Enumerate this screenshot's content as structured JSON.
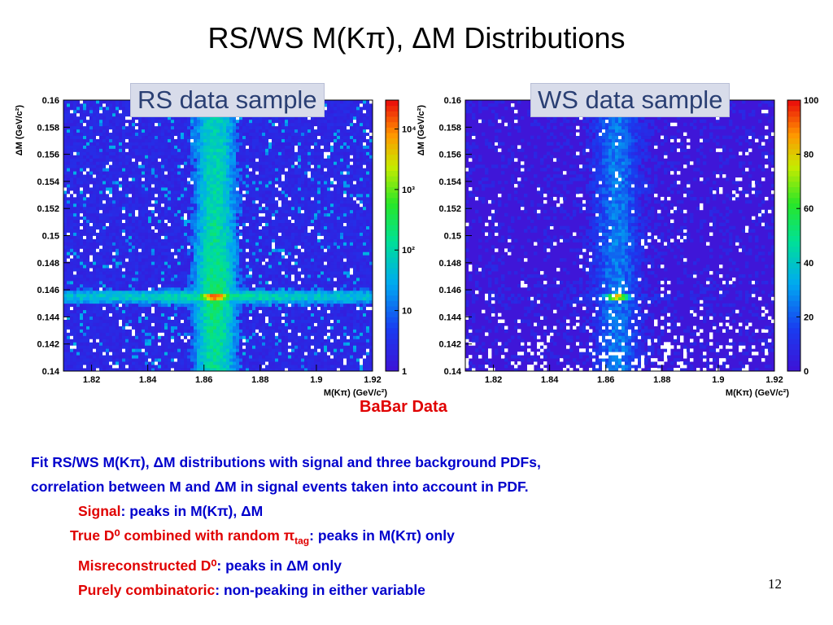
{
  "slide": {
    "title": "RS/WS  M(Kπ), ΔM Distributions",
    "babar_label": "BaBar Data",
    "page_number": "12",
    "text": {
      "line1": "Fit RS/WS M(Kπ), ΔM distributions with signal and three background PDFs,",
      "line2": "correlation between M and ΔM in signal events taken into account in PDF.",
      "b1_red": "Signal",
      "b1_rest": ": peaks in M(Kπ), ΔM",
      "b2_red": "True D⁰ combined with random π",
      "b2_sub": "tag",
      "b2_rest": ": peaks in M(Kπ) only",
      "b3_red": "Misreconstructed D⁰",
      "b3_rest": ": peaks in ΔM only",
      "b4_red": "Purely combinatoric",
      "b4_rest": ": non-peaking in either variable"
    }
  },
  "colors": {
    "accent_red": "#e00000",
    "text_blue": "#0000cc",
    "bg_purple": "#3f16d8"
  },
  "chart_data": [
    {
      "type": "heatmap",
      "title": "RS data sample",
      "xlabel": "M(Kπ) (GeV/c²)",
      "ylabel": "ΔM (GeV/c²)",
      "xlim": [
        1.81,
        1.92
      ],
      "ylim": [
        0.14,
        0.16
      ],
      "xticks": [
        "1.82",
        "1.84",
        "1.86",
        "1.88",
        "1.9",
        "1.92"
      ],
      "yticks": [
        "0.14",
        "0.142",
        "0.144",
        "0.146",
        "0.148",
        "0.15",
        "0.152",
        "0.154",
        "0.156",
        "0.158",
        "0.16"
      ],
      "colorbar": {
        "scale": "log",
        "ticks": [
          "1",
          "10",
          "10²",
          "10³",
          "10⁴"
        ],
        "range": [
          1,
          30000
        ]
      },
      "peak": {
        "x": 1.864,
        "y": 0.1455
      },
      "description_levels": "signal peak ~10^4 at (1.864, 0.1455); vertical band along M=1.864 ~30; horizontal band along ΔM=0.1455 ~30; background ~1-3"
    },
    {
      "type": "heatmap",
      "title": "WS data sample",
      "xlabel": "M(Kπ) (GeV/c²)",
      "ylabel": "ΔM (GeV/c²)",
      "xlim": [
        1.81,
        1.92
      ],
      "ylim": [
        0.14,
        0.16
      ],
      "xticks": [
        "1.82",
        "1.84",
        "1.86",
        "1.88",
        "1.9",
        "1.92"
      ],
      "yticks": [
        "0.14",
        "0.142",
        "0.144",
        "0.146",
        "0.148",
        "0.15",
        "0.152",
        "0.154",
        "0.156",
        "0.158",
        "0.16"
      ],
      "colorbar": {
        "scale": "linear",
        "ticks": [
          "0",
          "20",
          "40",
          "60",
          "80",
          "100"
        ],
        "range": [
          0,
          100
        ]
      },
      "peak": {
        "x": 1.864,
        "y": 0.1455
      },
      "description_levels": "narrow peak ~80 at (1.864, 0.1455); faint vertical band along M=1.864 ~10-20; sparse background ~0-5"
    }
  ]
}
